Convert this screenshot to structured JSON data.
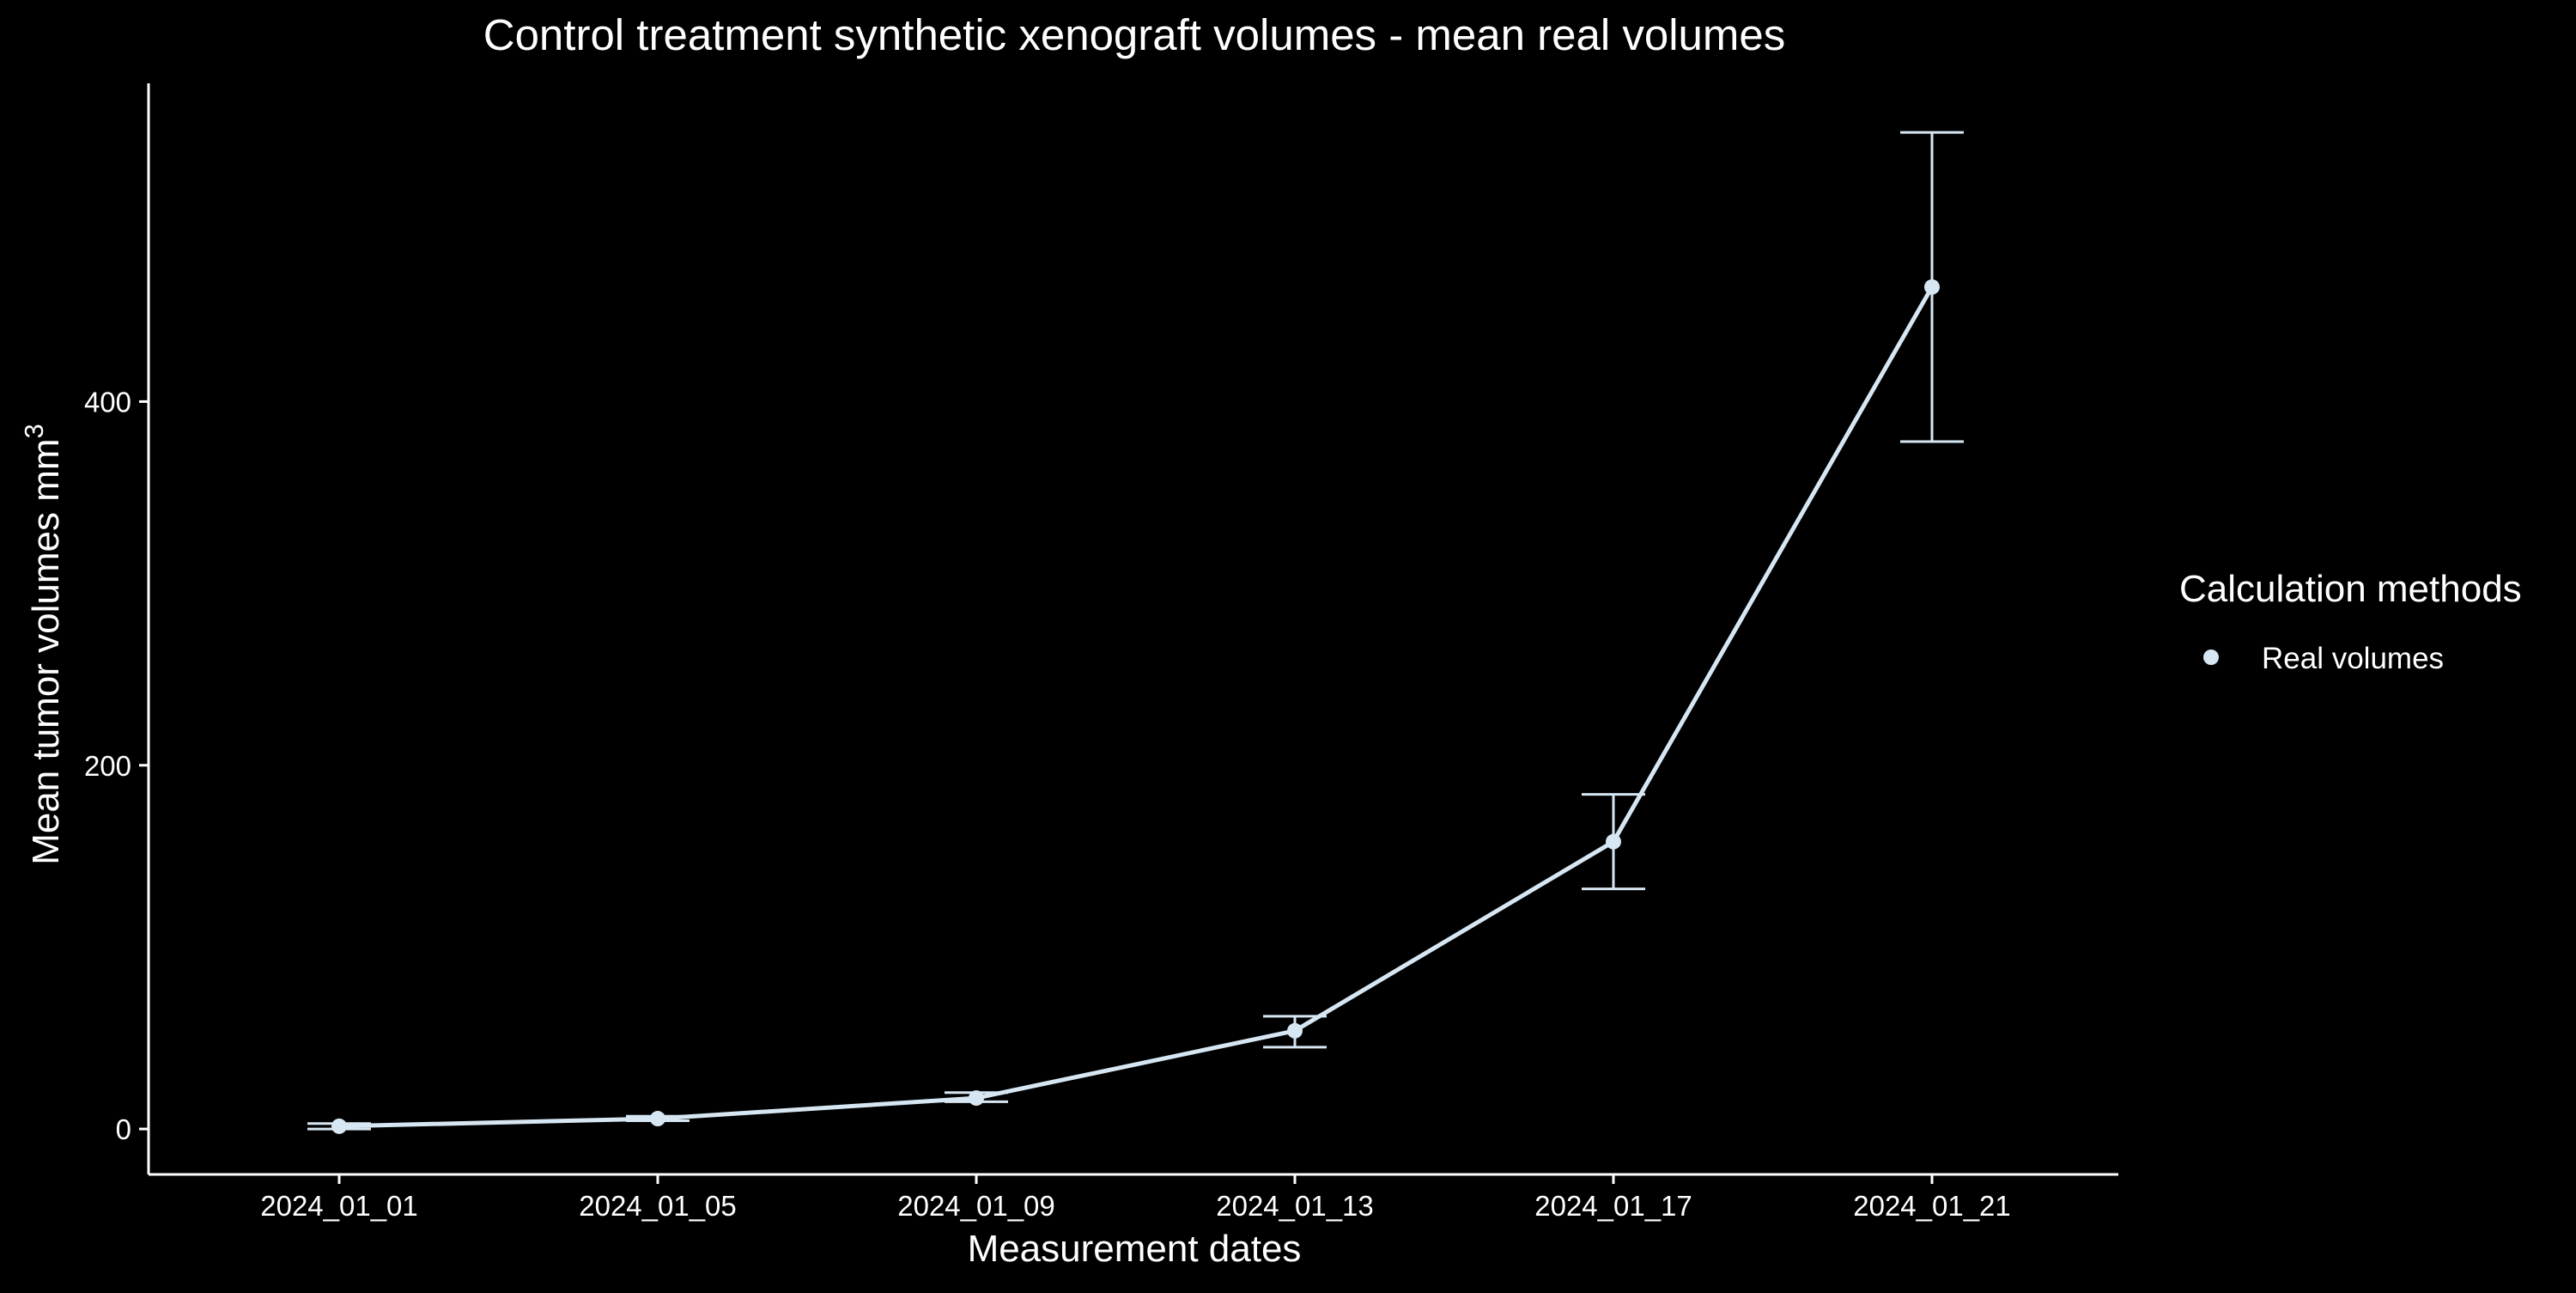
{
  "chart_data": {
    "type": "line",
    "title": "Control treatment synthetic xenograft volumes - mean real volumes",
    "xlabel": "Measurement dates",
    "ylabel": "Mean tumor volumes mm",
    "ylabel_superscript": "3",
    "categories": [
      "2024_01_01",
      "2024_01_05",
      "2024_01_09",
      "2024_01_13",
      "2024_01_17",
      "2024_01_21"
    ],
    "series": [
      {
        "name": "Real volumes",
        "color": "#d6e6f2",
        "values": [
          1.5,
          5.7,
          17,
          54,
          158,
          463
        ],
        "error_low": [
          0,
          4.5,
          15,
          45,
          132,
          378
        ],
        "error_high": [
          3,
          7,
          20,
          62,
          184,
          548
        ]
      }
    ],
    "y_ticks": [
      0,
      200,
      400
    ],
    "ylim": [
      -25,
      575
    ],
    "grid": false,
    "legend": {
      "title": "Calculation methods",
      "position": "right"
    }
  },
  "colors": {
    "background": "#000000",
    "axis": "#ffffff",
    "text": "#ffffff"
  }
}
